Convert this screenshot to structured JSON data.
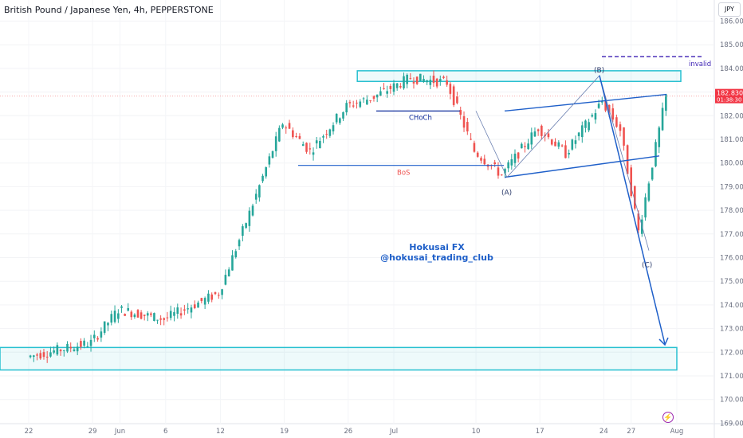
{
  "header": {
    "title": "British Pound / Japanese Yen, 4h, PEPPERSTONE",
    "currency": "JPY"
  },
  "price_tag": {
    "value": "182.830",
    "timer": "01:38:30",
    "color": "#f23645"
  },
  "watermark": {
    "line1": "Hokusai FX",
    "line2": "@hokusai_trading_club",
    "color": "#1e5fc9"
  },
  "annotations": {
    "invalid": "invalid",
    "choch": "CHoCh",
    "bos": "BoS",
    "wave_a": "(A)",
    "wave_b": "(B)",
    "wave_c": "(C)"
  },
  "colors": {
    "up": "#26a69a",
    "down": "#ef5350",
    "zone": "#27c0d0",
    "line": "#1e5fc9",
    "invalid": "#3a1fb3"
  },
  "chart_data": {
    "type": "candlestick",
    "title": "British Pound / Japanese Yen, 4h, PEPPERSTONE",
    "ylim": [
      168.6,
      186.3
    ],
    "y_ticks": [
      "186.000",
      "185.000",
      "184.000",
      "183.000",
      "182.000",
      "181.000",
      "180.000",
      "179.000",
      "178.000",
      "177.000",
      "176.000",
      "175.000",
      "174.000",
      "173.000",
      "172.000",
      "171.000",
      "170.000",
      "169.000"
    ],
    "x_ticks": [
      "22",
      "29",
      "Jun",
      "6",
      "12",
      "19",
      "26",
      "Jul",
      "10",
      "17",
      "24",
      "27",
      "Aug"
    ],
    "approx_closing_path": [
      [
        "May 22",
        171.8
      ],
      [
        "May 29",
        172.4
      ],
      [
        "Jun 1",
        173.8
      ],
      [
        "Jun 6",
        173.4
      ],
      [
        "Jun 12",
        174.5
      ],
      [
        "Jun 15",
        177.5
      ],
      [
        "Jun 19",
        181.7
      ],
      [
        "Jun 22",
        180.5
      ],
      [
        "Jun 26",
        182.4
      ],
      [
        "Jun 29",
        182.8
      ],
      [
        "Jul 3",
        183.6
      ],
      [
        "Jul 7",
        183.4
      ],
      [
        "Jul 10",
        180.5
      ],
      [
        "Jul 13",
        179.5
      ],
      [
        "Jul 17",
        181.5
      ],
      [
        "Jul 20",
        180.4
      ],
      [
        "Jul 24",
        182.6
      ],
      [
        "Jul 26",
        181.4
      ],
      [
        "Jul 28",
        177.1
      ],
      [
        "Jul 31",
        182.83
      ]
    ],
    "zones": [
      {
        "from": 183.9,
        "to": 183.45
      },
      {
        "from": 172.2,
        "to": 171.25
      }
    ],
    "levels": {
      "invalid": 184.5,
      "choch": 182.2,
      "bos": 179.9
    },
    "waves": {
      "A": 179.4,
      "B": 183.7,
      "C": 176.3
    },
    "last_price": 182.83,
    "grid": true
  }
}
